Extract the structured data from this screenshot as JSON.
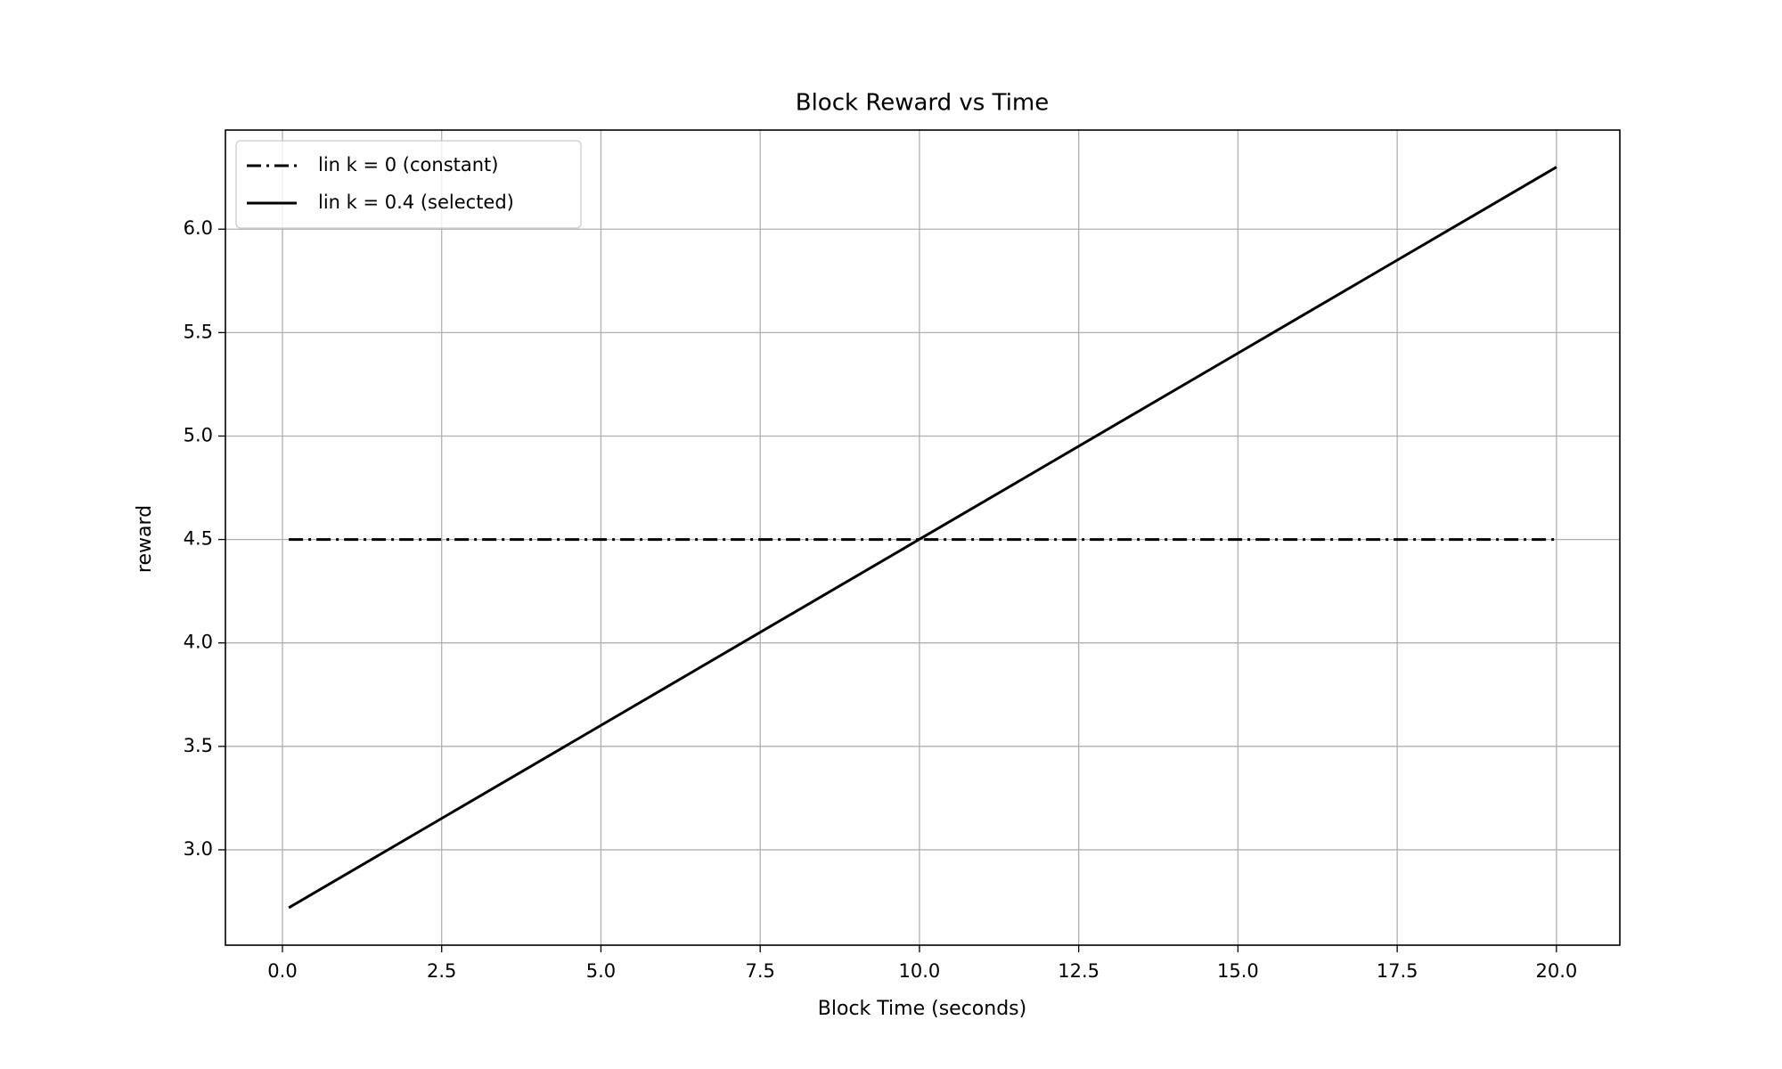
{
  "chart_data": {
    "type": "line",
    "title": "Block Reward vs Time",
    "xlabel": "Block Time (seconds)",
    "ylabel": "reward",
    "x": [
      0.1,
      20
    ],
    "series": [
      {
        "name": "lin k = 0 (constant)",
        "color": "#000000",
        "dash": "dashdot",
        "values": [
          4.5,
          4.5
        ]
      },
      {
        "name": "lin k = 0.4 (selected)",
        "color": "#000000",
        "dash": "solid",
        "values": [
          2.72,
          6.3
        ]
      }
    ],
    "xlim": [
      -0.895,
      20.995
    ],
    "ylim": [
      2.539,
      6.479
    ],
    "xticks": [
      {
        "value": 0,
        "label": "0.0"
      },
      2.5,
      {
        "value": 5,
        "label": "5.0"
      },
      7.5,
      {
        "value": 10,
        "label": "10.0"
      },
      12.5,
      {
        "value": 15,
        "label": "15.0"
      },
      17.5,
      {
        "value": 20,
        "label": "20.0"
      }
    ],
    "yticks": [
      {
        "value": 3,
        "label": "3.0"
      },
      3.5,
      {
        "value": 4,
        "label": "4.0"
      },
      4.5,
      {
        "value": 5,
        "label": "5.0"
      },
      5.5,
      {
        "value": 6,
        "label": "6.0"
      }
    ],
    "grid": true,
    "legend": "upper left"
  }
}
